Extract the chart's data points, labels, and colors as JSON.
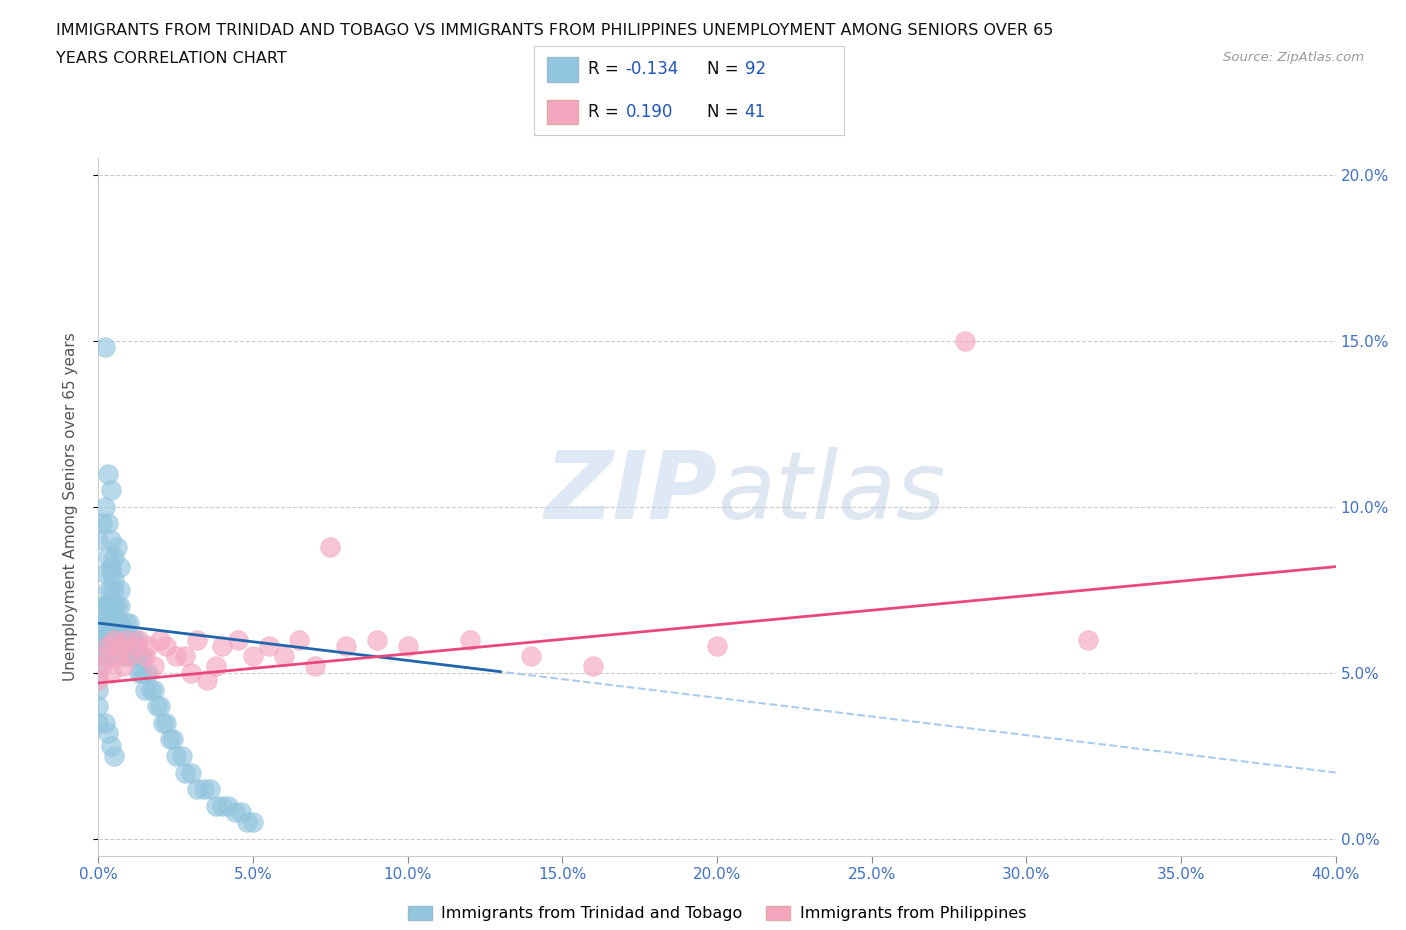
{
  "title_line1": "IMMIGRANTS FROM TRINIDAD AND TOBAGO VS IMMIGRANTS FROM PHILIPPINES UNEMPLOYMENT AMONG SENIORS OVER 65",
  "title_line2": "YEARS CORRELATION CHART",
  "source": "Source: ZipAtlas.com",
  "ylabel": "Unemployment Among Seniors over 65 years",
  "xlim": [
    0.0,
    0.4
  ],
  "ylim": [
    -0.005,
    0.205
  ],
  "xticks": [
    0.0,
    0.05,
    0.1,
    0.15,
    0.2,
    0.25,
    0.3,
    0.35,
    0.4
  ],
  "yticks": [
    0.0,
    0.05,
    0.1,
    0.15,
    0.2
  ],
  "color_blue": "#92c5de",
  "color_pink": "#f4a6c0",
  "trend_blue": "#2166ac",
  "trend_pink": "#e8497a",
  "trend_dashed_color": "#aaccee",
  "R_blue": -0.134,
  "N_blue": 92,
  "R_pink": 0.19,
  "N_pink": 41,
  "legend_label_blue": "Immigrants from Trinidad and Tobago",
  "legend_label_pink": "Immigrants from Philippines",
  "watermark_ZIP": "ZIP",
  "watermark_atlas": "atlas",
  "background_color": "#ffffff",
  "grid_color": "#cccccc",
  "tick_color": "#4472c4",
  "blue_x": [
    0.0,
    0.0,
    0.0,
    0.0,
    0.0,
    0.0,
    0.001,
    0.001,
    0.001,
    0.002,
    0.002,
    0.002,
    0.002,
    0.003,
    0.003,
    0.003,
    0.003,
    0.003,
    0.004,
    0.004,
    0.004,
    0.004,
    0.005,
    0.005,
    0.005,
    0.005,
    0.006,
    0.006,
    0.006,
    0.007,
    0.007,
    0.007,
    0.008,
    0.008,
    0.009,
    0.009,
    0.01,
    0.01,
    0.01,
    0.011,
    0.011,
    0.012,
    0.012,
    0.013,
    0.013,
    0.014,
    0.014,
    0.015,
    0.015,
    0.016,
    0.017,
    0.018,
    0.019,
    0.02,
    0.021,
    0.022,
    0.023,
    0.024,
    0.025,
    0.027,
    0.028,
    0.03,
    0.032,
    0.034,
    0.036,
    0.038,
    0.04,
    0.042,
    0.044,
    0.046,
    0.048,
    0.05,
    0.0,
    0.001,
    0.002,
    0.003,
    0.004,
    0.005,
    0.006,
    0.007,
    0.002,
    0.003,
    0.004,
    0.001,
    0.002,
    0.003,
    0.004,
    0.005,
    0.002,
    0.003,
    0.004,
    0.005
  ],
  "blue_y": [
    0.06,
    0.055,
    0.05,
    0.045,
    0.04,
    0.035,
    0.065,
    0.06,
    0.055,
    0.07,
    0.065,
    0.06,
    0.055,
    0.075,
    0.07,
    0.065,
    0.06,
    0.055,
    0.08,
    0.075,
    0.07,
    0.065,
    0.075,
    0.07,
    0.065,
    0.06,
    0.07,
    0.065,
    0.06,
    0.075,
    0.07,
    0.065,
    0.06,
    0.055,
    0.065,
    0.06,
    0.065,
    0.06,
    0.055,
    0.06,
    0.055,
    0.06,
    0.055,
    0.055,
    0.05,
    0.055,
    0.05,
    0.05,
    0.045,
    0.05,
    0.045,
    0.045,
    0.04,
    0.04,
    0.035,
    0.035,
    0.03,
    0.03,
    0.025,
    0.025,
    0.02,
    0.02,
    0.015,
    0.015,
    0.015,
    0.01,
    0.01,
    0.01,
    0.008,
    0.008,
    0.005,
    0.005,
    0.09,
    0.095,
    0.1,
    0.095,
    0.09,
    0.085,
    0.088,
    0.082,
    0.148,
    0.11,
    0.105,
    0.07,
    0.08,
    0.085,
    0.082,
    0.078,
    0.035,
    0.032,
    0.028,
    0.025
  ],
  "pink_x": [
    0.0,
    0.001,
    0.002,
    0.003,
    0.004,
    0.005,
    0.006,
    0.007,
    0.008,
    0.009,
    0.01,
    0.012,
    0.013,
    0.015,
    0.016,
    0.018,
    0.02,
    0.022,
    0.025,
    0.028,
    0.03,
    0.032,
    0.035,
    0.038,
    0.04,
    0.045,
    0.05,
    0.055,
    0.06,
    0.065,
    0.07,
    0.075,
    0.08,
    0.09,
    0.1,
    0.12,
    0.14,
    0.16,
    0.2,
    0.28,
    0.32
  ],
  "pink_y": [
    0.048,
    0.052,
    0.055,
    0.058,
    0.05,
    0.06,
    0.055,
    0.058,
    0.052,
    0.06,
    0.055,
    0.058,
    0.06,
    0.055,
    0.058,
    0.052,
    0.06,
    0.058,
    0.055,
    0.055,
    0.05,
    0.06,
    0.048,
    0.052,
    0.058,
    0.06,
    0.055,
    0.058,
    0.055,
    0.06,
    0.052,
    0.088,
    0.058,
    0.06,
    0.058,
    0.06,
    0.055,
    0.052,
    0.058,
    0.15,
    0.06
  ],
  "blue_trend_x0": 0.0,
  "blue_trend_y0": 0.065,
  "blue_trend_x1": 0.4,
  "blue_trend_y1": 0.02,
  "pink_trend_x0": 0.0,
  "pink_trend_y0": 0.047,
  "pink_trend_x1": 0.4,
  "pink_trend_y1": 0.082
}
